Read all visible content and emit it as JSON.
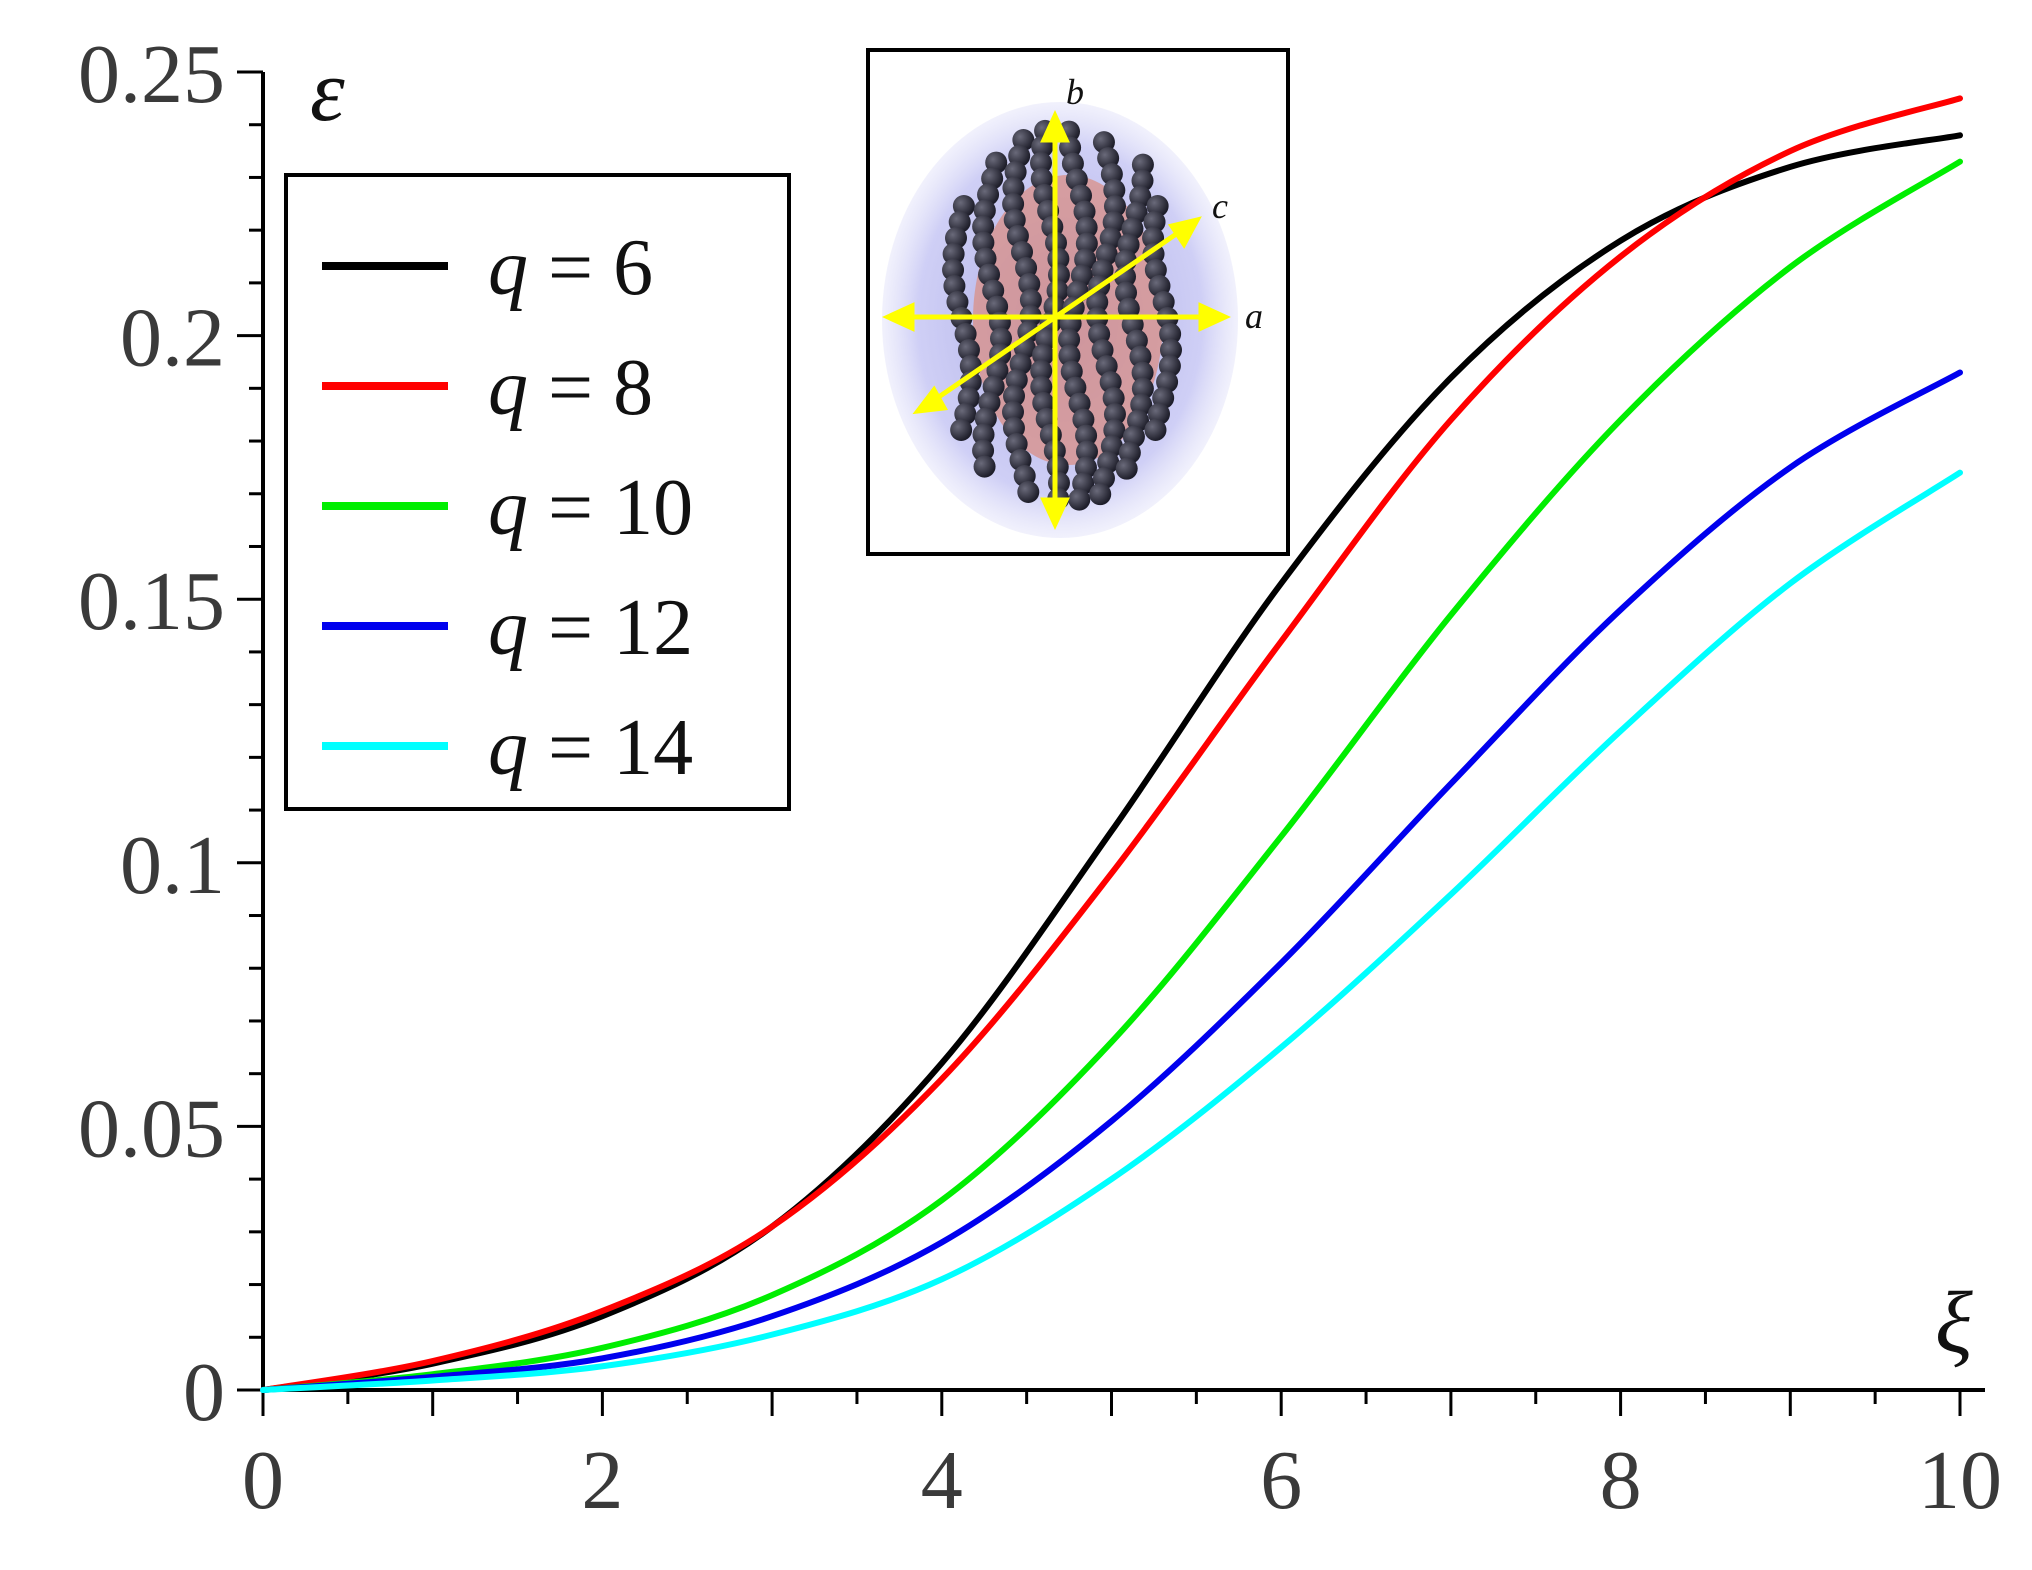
{
  "chart_data": {
    "type": "line",
    "title": "",
    "xlabel": "ξ",
    "ylabel": "ε",
    "xlim": [
      0,
      10
    ],
    "ylim": [
      0,
      0.25
    ],
    "grid": false,
    "legend_position": "top-left",
    "x_ticks": [
      {
        "value": 0,
        "label": "0"
      },
      {
        "value": 2,
        "label": "2"
      },
      {
        "value": 4,
        "label": "4"
      },
      {
        "value": 6,
        "label": "6"
      },
      {
        "value": 8,
        "label": "8"
      },
      {
        "value": 10,
        "label": "10"
      }
    ],
    "y_ticks": [
      {
        "value": 0,
        "label": "0"
      },
      {
        "value": 0.05,
        "label": "0.05"
      },
      {
        "value": 0.1,
        "label": "0.1"
      },
      {
        "value": 0.15,
        "label": "0.15"
      },
      {
        "value": 0.2,
        "label": "0.2"
      },
      {
        "value": 0.25,
        "label": "0.25"
      }
    ],
    "x": [
      0,
      1,
      2,
      3,
      4,
      5,
      6,
      7,
      8,
      9,
      10
    ],
    "series": [
      {
        "name_symbol": "q",
        "name_value": "6",
        "color": "#000000",
        "values": [
          0,
          0.005,
          0.014,
          0.031,
          0.062,
          0.106,
          0.153,
          0.192,
          0.218,
          0.232,
          0.238
        ]
      },
      {
        "name_symbol": "q",
        "name_value": "8",
        "color": "#ff0000",
        "values": [
          0,
          0.0055,
          0.015,
          0.031,
          0.059,
          0.098,
          0.142,
          0.184,
          0.215,
          0.235,
          0.245
        ]
      },
      {
        "name_symbol": "q",
        "name_value": "10",
        "color": "#00ee00",
        "values": [
          0,
          0.003,
          0.008,
          0.018,
          0.036,
          0.066,
          0.105,
          0.147,
          0.184,
          0.213,
          0.233
        ]
      },
      {
        "name_symbol": "q",
        "name_value": "12",
        "color": "#0000ee",
        "values": [
          0,
          0.0025,
          0.006,
          0.014,
          0.028,
          0.051,
          0.081,
          0.115,
          0.148,
          0.175,
          0.193
        ]
      },
      {
        "name_symbol": "q",
        "name_value": "14",
        "color": "#00ffff",
        "values": [
          0,
          0.0018,
          0.0045,
          0.0105,
          0.021,
          0.04,
          0.065,
          0.094,
          0.125,
          0.153,
          0.174
        ]
      }
    ],
    "inset": {
      "axis_labels": [
        "a",
        "b",
        "c"
      ],
      "arrow_color": "#ffff00",
      "shell_color": "#9a9ae8",
      "core_color": "#d98f86",
      "bead_color": "#2c2c3c"
    }
  }
}
